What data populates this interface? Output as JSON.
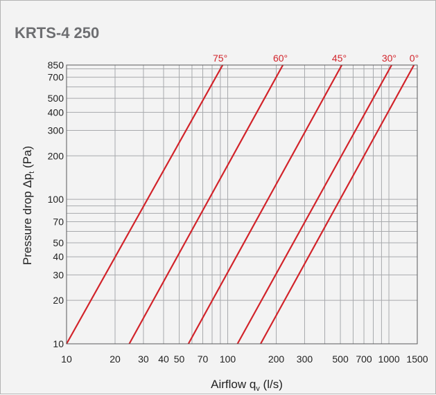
{
  "chart_data": {
    "type": "line",
    "title": "KRTS-4 250",
    "xlabel": "Airflow q",
    "xlabel_sub": "v",
    "xlabel_unit": " (l/s)",
    "ylabel": "Pressure drop Δp",
    "ylabel_sub": "t",
    "ylabel_unit": " (Pa)",
    "x_scale": "log",
    "y_scale": "log",
    "xlim": [
      10,
      1500
    ],
    "ylim": [
      10,
      850
    ],
    "grid": true,
    "x_ticks": [
      10,
      20,
      30,
      40,
      50,
      70,
      100,
      200,
      300,
      500,
      700,
      1000,
      1500
    ],
    "x_tick_labels": [
      "10",
      "20",
      "30",
      "40",
      "50",
      "70",
      "100",
      "200",
      "300",
      "500",
      "700",
      "1000",
      "1500"
    ],
    "y_ticks": [
      10,
      20,
      30,
      40,
      50,
      70,
      100,
      200,
      300,
      400,
      500,
      700,
      850
    ],
    "y_tick_labels": [
      "10",
      "20",
      "30",
      "40",
      "50",
      "70",
      "100",
      "200",
      "300",
      "400",
      "500",
      "700",
      "850"
    ],
    "x_grid": [
      10,
      20,
      30,
      40,
      50,
      60,
      70,
      80,
      90,
      100,
      200,
      300,
      400,
      500,
      600,
      700,
      800,
      900,
      1000,
      1500
    ],
    "y_grid": [
      10,
      20,
      30,
      40,
      50,
      60,
      70,
      80,
      90,
      100,
      200,
      300,
      400,
      500,
      600,
      700,
      800,
      850
    ],
    "series": [
      {
        "name": "75°",
        "x": [
          10,
          93
        ],
        "y": [
          10,
          850
        ]
      },
      {
        "name": "60°",
        "x": [
          24.5,
          220
        ],
        "y": [
          10,
          850
        ]
      },
      {
        "name": "45°",
        "x": [
          57,
          510
        ],
        "y": [
          10,
          850
        ]
      },
      {
        "name": "30°",
        "x": [
          115,
          1040
        ],
        "y": [
          10,
          850
        ]
      },
      {
        "name": "0°",
        "x": [
          160,
          1430
        ],
        "y": [
          10,
          850
        ]
      }
    ],
    "line_color": "#d2232a",
    "grid_color": "#a7a9ac"
  }
}
